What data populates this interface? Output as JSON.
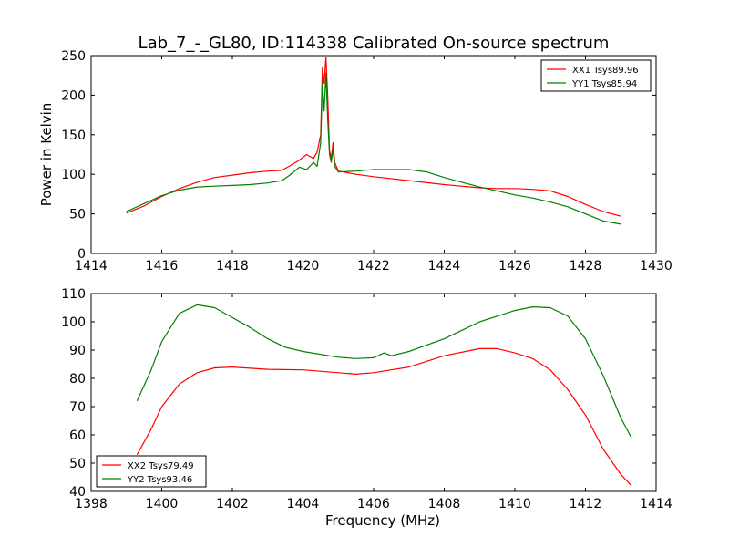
{
  "chart_data": [
    {
      "type": "line",
      "title": "Lab_7_-_GL80, ID:114338 Calibrated On-source spectrum",
      "xlabel": "",
      "ylabel": "Power in Kelvin",
      "xlim": [
        1414,
        1430
      ],
      "ylim": [
        0,
        250
      ],
      "xticks": [
        1414,
        1416,
        1418,
        1420,
        1422,
        1424,
        1426,
        1428,
        1430
      ],
      "yticks": [
        0,
        50,
        100,
        150,
        200,
        250
      ],
      "legend": "top-right",
      "grid": false,
      "series": [
        {
          "name": "XX1 Tsys89.96",
          "color": "#ff0000",
          "points": [
            [
              1415.0,
              51
            ],
            [
              1415.5,
              60
            ],
            [
              1416.0,
              72
            ],
            [
              1416.5,
              82
            ],
            [
              1417.0,
              90
            ],
            [
              1417.5,
              96
            ],
            [
              1418.0,
              99
            ],
            [
              1418.5,
              102
            ],
            [
              1419.0,
              104
            ],
            [
              1419.4,
              105
            ],
            [
              1419.6,
              110
            ],
            [
              1419.9,
              118
            ],
            [
              1420.1,
              125
            ],
            [
              1420.3,
              120
            ],
            [
              1420.4,
              128
            ],
            [
              1420.5,
              150
            ],
            [
              1420.55,
              235
            ],
            [
              1420.6,
              215
            ],
            [
              1420.65,
              248
            ],
            [
              1420.7,
              200
            ],
            [
              1420.75,
              130
            ],
            [
              1420.8,
              120
            ],
            [
              1420.85,
              140
            ],
            [
              1420.9,
              115
            ],
            [
              1421.0,
              104
            ],
            [
              1421.5,
              100
            ],
            [
              1422.0,
              97
            ],
            [
              1423.0,
              92
            ],
            [
              1424.0,
              87
            ],
            [
              1425.0,
              83
            ],
            [
              1425.5,
              82
            ],
            [
              1426.0,
              82
            ],
            [
              1426.5,
              81
            ],
            [
              1427.0,
              79
            ],
            [
              1427.5,
              72
            ],
            [
              1428.0,
              62
            ],
            [
              1428.5,
              53
            ],
            [
              1429.0,
              47
            ]
          ]
        },
        {
          "name": "YY1 Tsys85.94",
          "color": "#008000",
          "points": [
            [
              1415.0,
              53
            ],
            [
              1415.5,
              63
            ],
            [
              1416.0,
              73
            ],
            [
              1416.5,
              80
            ],
            [
              1417.0,
              84
            ],
            [
              1417.5,
              85
            ],
            [
              1418.0,
              86
            ],
            [
              1418.5,
              87
            ],
            [
              1419.0,
              89
            ],
            [
              1419.4,
              92
            ],
            [
              1419.6,
              98
            ],
            [
              1419.9,
              109
            ],
            [
              1420.1,
              106
            ],
            [
              1420.3,
              115
            ],
            [
              1420.4,
              110
            ],
            [
              1420.5,
              140
            ],
            [
              1420.55,
              215
            ],
            [
              1420.6,
              180
            ],
            [
              1420.65,
              228
            ],
            [
              1420.7,
              170
            ],
            [
              1420.75,
              125
            ],
            [
              1420.8,
              115
            ],
            [
              1420.85,
              132
            ],
            [
              1420.9,
              110
            ],
            [
              1421.0,
              103
            ],
            [
              1421.5,
              104
            ],
            [
              1422.0,
              106
            ],
            [
              1423.0,
              106
            ],
            [
              1423.5,
              103
            ],
            [
              1424.0,
              96
            ],
            [
              1424.5,
              90
            ],
            [
              1425.0,
              84
            ],
            [
              1425.5,
              79
            ],
            [
              1426.0,
              74
            ],
            [
              1426.5,
              70
            ],
            [
              1427.0,
              65
            ],
            [
              1427.5,
              59
            ],
            [
              1428.0,
              50
            ],
            [
              1428.5,
              41
            ],
            [
              1429.0,
              37
            ]
          ]
        }
      ]
    },
    {
      "type": "line",
      "title": "",
      "xlabel": "Frequency (MHz)",
      "ylabel": "",
      "xlim": [
        1398,
        1414
      ],
      "ylim": [
        40,
        110
      ],
      "xticks": [
        1398,
        1400,
        1402,
        1404,
        1406,
        1408,
        1410,
        1412,
        1414
      ],
      "yticks": [
        40,
        50,
        60,
        70,
        80,
        90,
        100,
        110
      ],
      "legend": "bottom-left",
      "grid": false,
      "series": [
        {
          "name": "XX2 Tsys79.49",
          "color": "#ff0000",
          "points": [
            [
              1399.3,
              53
            ],
            [
              1399.7,
              62
            ],
            [
              1400.0,
              70
            ],
            [
              1400.5,
              78
            ],
            [
              1401.0,
              82
            ],
            [
              1401.5,
              83.7
            ],
            [
              1402.0,
              84
            ],
            [
              1403.0,
              83.2
            ],
            [
              1404.0,
              83
            ],
            [
              1405.0,
              82
            ],
            [
              1405.5,
              81.5
            ],
            [
              1406.0,
              82
            ],
            [
              1406.5,
              83
            ],
            [
              1407.0,
              84
            ],
            [
              1408.0,
              88
            ],
            [
              1409.0,
              90.5
            ],
            [
              1409.5,
              90.5
            ],
            [
              1410.0,
              89
            ],
            [
              1410.5,
              87
            ],
            [
              1411.0,
              83
            ],
            [
              1411.5,
              76
            ],
            [
              1412.0,
              67
            ],
            [
              1412.5,
              55
            ],
            [
              1413.0,
              46
            ],
            [
              1413.3,
              42
            ]
          ]
        },
        {
          "name": "YY2 Tsys93.46",
          "color": "#008000",
          "points": [
            [
              1399.3,
              72
            ],
            [
              1399.7,
              83
            ],
            [
              1400.0,
              93
            ],
            [
              1400.5,
              103
            ],
            [
              1401.0,
              106
            ],
            [
              1401.5,
              105
            ],
            [
              1402.0,
              101.5
            ],
            [
              1402.5,
              98
            ],
            [
              1403.0,
              94
            ],
            [
              1403.5,
              91
            ],
            [
              1404.0,
              89.5
            ],
            [
              1405.0,
              87.5
            ],
            [
              1405.5,
              87
            ],
            [
              1406.0,
              87.3
            ],
            [
              1406.3,
              89
            ],
            [
              1406.5,
              88
            ],
            [
              1407.0,
              89.5
            ],
            [
              1408.0,
              94
            ],
            [
              1408.5,
              97
            ],
            [
              1409.0,
              100
            ],
            [
              1409.5,
              102
            ],
            [
              1410.0,
              104
            ],
            [
              1410.5,
              105.3
            ],
            [
              1411.0,
              105
            ],
            [
              1411.5,
              102
            ],
            [
              1412.0,
              94
            ],
            [
              1412.5,
              81
            ],
            [
              1413.0,
              66
            ],
            [
              1413.3,
              59
            ]
          ]
        }
      ]
    }
  ]
}
